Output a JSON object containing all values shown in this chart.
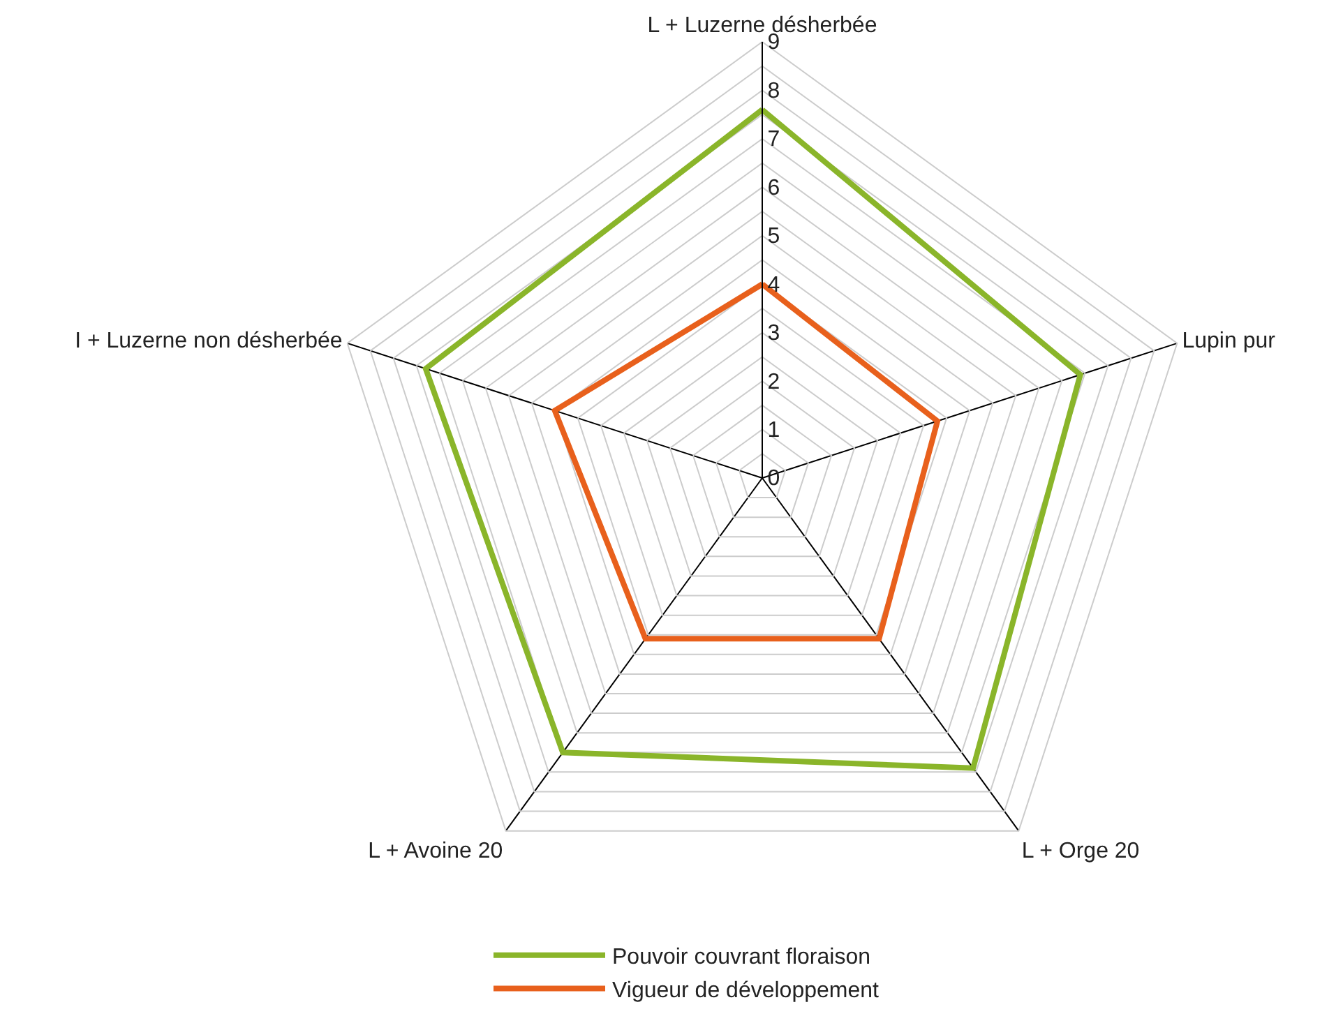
{
  "chart_data": {
    "type": "radar",
    "categories": [
      "L + Luzerne désherbée",
      "Lupin pur",
      "L + Orge 20",
      "L + Avoine 20",
      "I + Luzerne non désherbée"
    ],
    "series": [
      {
        "name": "Pouvoir couvrant floraison",
        "color": "#8ab52a",
        "values": [
          7.6,
          6.9,
          7.4,
          7.0,
          7.3
        ]
      },
      {
        "name": "Vigueur de développement",
        "color": "#e8601c",
        "values": [
          4.0,
          3.8,
          4.1,
          4.1,
          4.5
        ]
      }
    ],
    "ylim": [
      0,
      9
    ],
    "yticks": [
      0,
      1,
      2,
      3,
      4,
      5,
      6,
      7,
      8,
      9
    ],
    "grid": true,
    "legend": "bottom",
    "marker": "none",
    "line_style": "solid"
  }
}
